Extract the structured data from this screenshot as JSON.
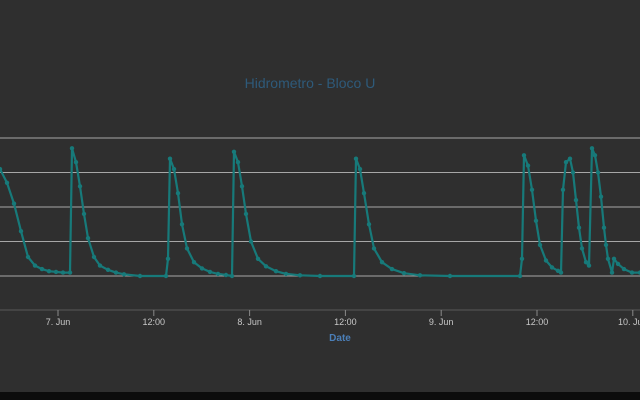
{
  "chart_data": {
    "type": "line",
    "title": "Hidrometro - Bloco U",
    "xlabel": "Date",
    "ylabel": "",
    "x_ticks": [
      "7. Jun",
      "12:00",
      "8. Jun",
      "12:00",
      "9. Jun",
      "12:00",
      "10. Jun"
    ],
    "grid": "horizontal",
    "legend": "none",
    "colors": {
      "series": "#177a7a",
      "title": "#2e5a7a",
      "axis_label": "#4b7fb8",
      "tick_label": "#c8c8c8",
      "grid": "#d0d0d0",
      "background": "#2f2f2f"
    },
    "series": [
      {
        "values": [
          [
            0.0,
            3.1
          ],
          [
            0.35,
            2.7
          ],
          [
            0.7,
            2.1
          ],
          [
            1.05,
            1.3
          ],
          [
            1.4,
            0.55
          ],
          [
            1.75,
            0.3
          ],
          [
            2.1,
            0.2
          ],
          [
            2.45,
            0.14
          ],
          [
            2.8,
            0.12
          ],
          [
            3.15,
            0.1
          ],
          [
            3.5,
            0.1
          ],
          [
            3.6,
            3.7
          ],
          [
            3.8,
            3.3
          ],
          [
            4.0,
            2.6
          ],
          [
            4.2,
            1.8
          ],
          [
            4.4,
            1.1
          ],
          [
            4.7,
            0.55
          ],
          [
            5.0,
            0.3
          ],
          [
            5.4,
            0.18
          ],
          [
            5.8,
            0.1
          ],
          [
            6.2,
            0.05
          ],
          [
            7.0,
            0.0
          ],
          [
            8.3,
            0.0
          ],
          [
            8.4,
            0.5
          ],
          [
            8.5,
            3.4
          ],
          [
            8.7,
            3.1
          ],
          [
            8.9,
            2.4
          ],
          [
            9.1,
            1.5
          ],
          [
            9.35,
            0.8
          ],
          [
            9.7,
            0.4
          ],
          [
            10.1,
            0.22
          ],
          [
            10.5,
            0.12
          ],
          [
            10.9,
            0.06
          ],
          [
            11.3,
            0.03
          ],
          [
            11.6,
            0.0
          ],
          [
            11.7,
            3.6
          ],
          [
            11.9,
            3.3
          ],
          [
            12.1,
            2.6
          ],
          [
            12.3,
            1.8
          ],
          [
            12.55,
            1.0
          ],
          [
            12.9,
            0.5
          ],
          [
            13.3,
            0.28
          ],
          [
            13.8,
            0.14
          ],
          [
            14.3,
            0.06
          ],
          [
            15.0,
            0.02
          ],
          [
            16.0,
            0.0
          ],
          [
            17.7,
            0.0
          ],
          [
            17.8,
            3.4
          ],
          [
            18.0,
            3.1
          ],
          [
            18.2,
            2.4
          ],
          [
            18.45,
            1.5
          ],
          [
            18.7,
            0.8
          ],
          [
            19.1,
            0.4
          ],
          [
            19.6,
            0.2
          ],
          [
            20.2,
            0.08
          ],
          [
            21.0,
            0.02
          ],
          [
            22.5,
            0.0
          ],
          [
            26.0,
            0.0
          ],
          [
            26.1,
            0.5
          ],
          [
            26.2,
            3.5
          ],
          [
            26.4,
            3.2
          ],
          [
            26.6,
            2.5
          ],
          [
            26.8,
            1.6
          ],
          [
            27.0,
            0.9
          ],
          [
            27.3,
            0.45
          ],
          [
            27.6,
            0.25
          ],
          [
            27.9,
            0.15
          ],
          [
            28.05,
            0.1
          ],
          [
            28.15,
            2.5
          ],
          [
            28.3,
            3.3
          ],
          [
            28.5,
            3.4
          ],
          [
            28.65,
            3.0
          ],
          [
            28.8,
            2.2
          ],
          [
            28.95,
            1.4
          ],
          [
            29.1,
            0.8
          ],
          [
            29.3,
            0.4
          ],
          [
            29.45,
            0.3
          ],
          [
            29.6,
            3.7
          ],
          [
            29.75,
            3.5
          ],
          [
            29.9,
            3.0
          ],
          [
            30.05,
            2.3
          ],
          [
            30.2,
            1.4
          ],
          [
            30.3,
            0.9
          ],
          [
            30.4,
            0.5
          ],
          [
            30.6,
            0.1
          ],
          [
            30.7,
            0.5
          ],
          [
            30.9,
            0.35
          ],
          [
            31.2,
            0.2
          ],
          [
            31.6,
            0.1
          ],
          [
            32.0,
            0.1
          ]
        ]
      }
    ]
  }
}
